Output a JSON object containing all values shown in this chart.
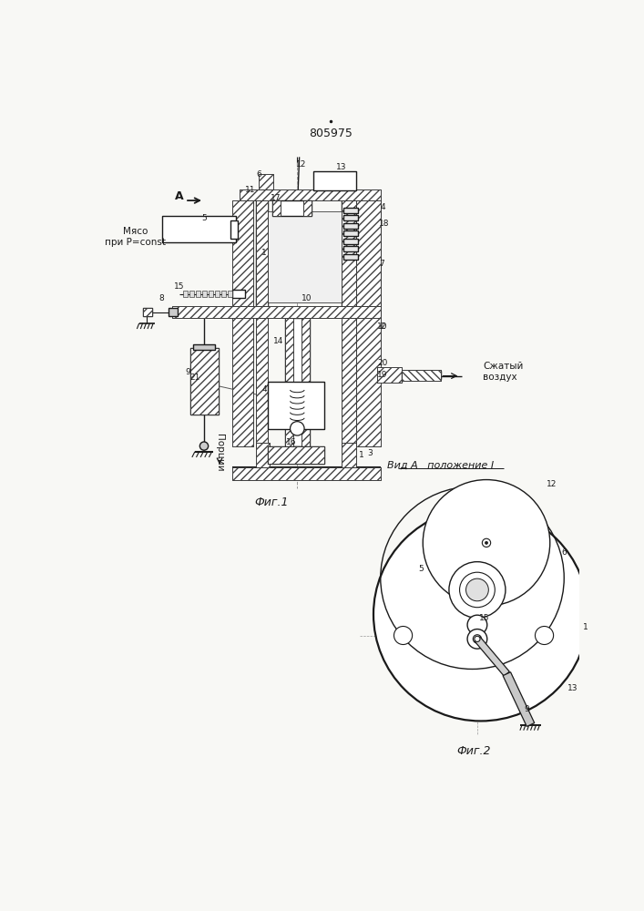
{
  "patent_number": "805975",
  "fig1_caption": "Фиг.1",
  "fig2_caption": "Фиг.2",
  "view_label": "Вид А   положение I",
  "arrow_label": "А",
  "meat_label": "Мясо\nпри P=const",
  "air_label": "Сжатый\nвоздух",
  "portions_label": "Порции",
  "bg_color": "#f8f8f5",
  "line_color": "#1a1a1a",
  "fig_width": 7.07,
  "fig_height": 10.0
}
